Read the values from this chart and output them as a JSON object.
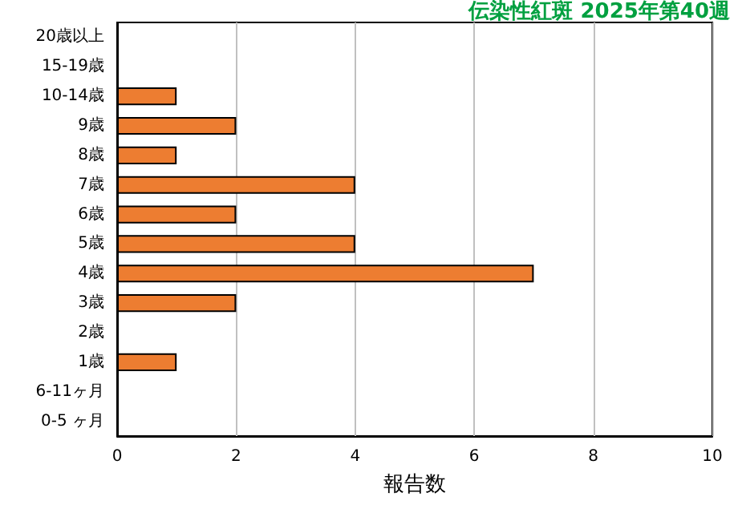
{
  "chart_data": {
    "type": "bar",
    "orientation": "horizontal",
    "title": "伝染性紅斑 2025年第40週",
    "xlabel": "報告数",
    "categories": [
      "20歳以上",
      "15-19歳",
      "10-14歳",
      "9歳",
      "8歳",
      "7歳",
      "6歳",
      "5歳",
      "4歳",
      "3歳",
      "2歳",
      "1歳",
      "6-11ヶ月",
      "0-5 ヶ月"
    ],
    "values": [
      0,
      0,
      1,
      2,
      1,
      4,
      2,
      4,
      7,
      2,
      0,
      1,
      0,
      0
    ],
    "color": "#ed7d31",
    "xlim": [
      0,
      10
    ],
    "xticks": [
      0,
      2,
      4,
      6,
      8,
      10
    ],
    "grid": "x"
  }
}
